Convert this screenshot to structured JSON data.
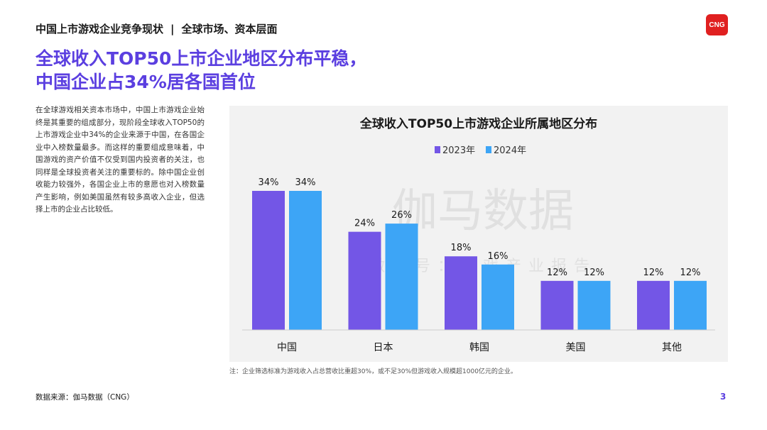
{
  "header": {
    "section": "中国上市游戏企业竞争现状",
    "separator": "|",
    "topic": "全球市场、资本层面"
  },
  "logo": {
    "text": "CNG",
    "color": "#e02020"
  },
  "headline": {
    "line1": "全球收入TOP50上市企业地区分布平稳，",
    "line2": "中国企业占34%居各国首位"
  },
  "body_text": "在全球游戏相关资本市场中，中国上市游戏企业始终是其重要的组成部分，现阶段全球收入TOP50的上市游戏企业中34%的企业来源于中国，在各国企业中入榜数量最多。而这样的重要组成意味着，中国游戏的资产价值不仅受到国内投资者的关注，也同样是全球投资者关注的重要标的。除中国企业创收能力较强外，各国企业上市的意愿也对入榜数量产生影响，例如美国虽然有较多高收入企业，但选择上市的企业占比较低。",
  "watermark": {
    "main": "伽马数据",
    "sub": "微信号：游戏产业报告"
  },
  "chart_data": {
    "type": "bar",
    "title": "全球收入TOP50上市游戏企业所属地区分布",
    "categories": [
      "中国",
      "日本",
      "韩国",
      "美国",
      "其他"
    ],
    "series": [
      {
        "name": "2023年",
        "values": [
          34,
          24,
          18,
          12,
          12
        ],
        "labels": [
          "34%",
          "24%",
          "18%",
          "12%",
          "12%"
        ],
        "color": "#7356e6"
      },
      {
        "name": "2024年",
        "values": [
          34,
          26,
          16,
          12,
          12
        ],
        "labels": [
          "34%",
          "26%",
          "16%",
          "12%",
          "12%"
        ],
        "color": "#3da5f6"
      }
    ],
    "ylim": [
      0,
      34
    ],
    "grid": false,
    "legend": "top-center"
  },
  "note": "注：企业筛选标准为游戏收入占总营收比重超30%，或不足30%但游戏收入规模超1000亿元的企业。",
  "source": "数据来源：伽马数据（CNG）",
  "page_number": "3",
  "colors": {
    "accent": "#5b3fe0",
    "panel": "#f2f2f2"
  }
}
